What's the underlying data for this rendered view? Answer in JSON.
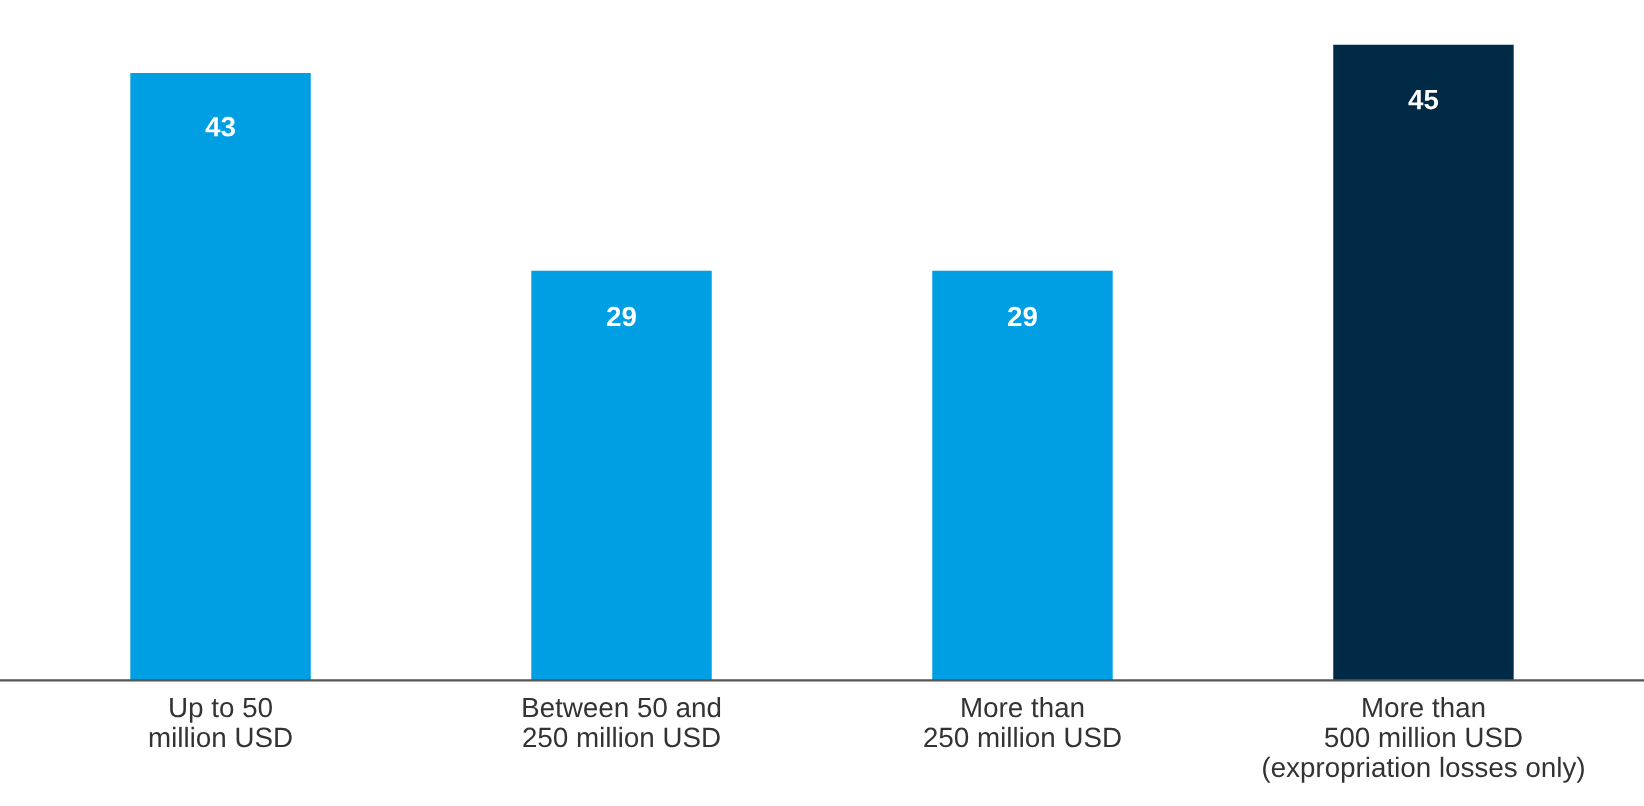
{
  "chart_data": {
    "type": "bar",
    "categories": [
      "Up to 50\nmillion USD",
      "Between 50 and\n250 million USD",
      "More than\n250 million USD",
      "More than\n500 million USD\n(expropriation losses only)"
    ],
    "values": [
      43,
      29,
      29,
      45
    ],
    "colors": [
      "#009fe3",
      "#009fe3",
      "#009fe3",
      "#002a46"
    ],
    "data_labels": true,
    "grid": false,
    "legend": false
  }
}
